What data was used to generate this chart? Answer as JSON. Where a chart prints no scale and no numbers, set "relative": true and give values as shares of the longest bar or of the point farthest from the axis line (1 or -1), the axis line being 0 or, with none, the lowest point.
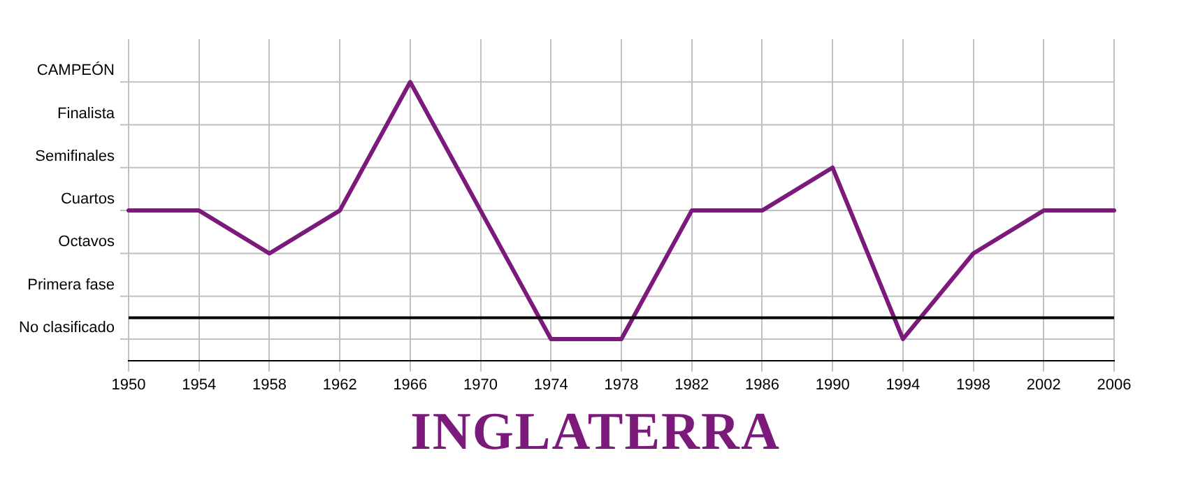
{
  "chart_data": {
    "type": "line",
    "title": "INGLATERRA",
    "relative": true,
    "categories": [
      "1950",
      "1954",
      "1958",
      "1962",
      "1966",
      "1970",
      "1974",
      "1978",
      "1982",
      "1986",
      "1990",
      "1994",
      "1998",
      "2002",
      "2006"
    ],
    "series": [
      {
        "color": "#7b1a7b",
        "values": [
          0.5,
          0.5,
          0.333,
          0.5,
          1,
          0.5,
          0,
          0,
          0.5,
          0.5,
          0.667,
          0,
          0.333,
          0.5,
          0.5
        ]
      }
    ],
    "annotations": [
      "No clasificado",
      "Primera fase",
      "Octavos",
      "Cuartos",
      "Semifinales",
      "Finalista",
      "CAMPEÓN"
    ],
    "ref_lines": [
      {
        "axis": "y",
        "value": 0.083,
        "color": "#000000"
      }
    ],
    "grid": true,
    "legend": false,
    "marker": "none",
    "line_style": "solid"
  }
}
